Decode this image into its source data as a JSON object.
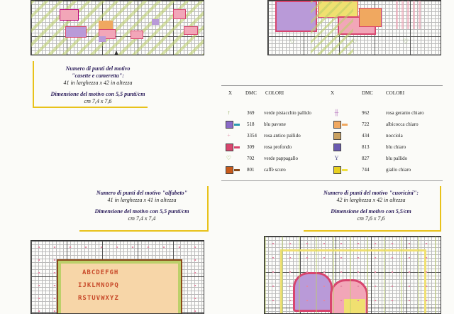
{
  "captions": {
    "casette": {
      "title_line1": "Numero di punti del motivo",
      "title_line2": "\"casette e cameretta\":",
      "stitches": "41 in larghezza x 42 in altezza",
      "size_title": "Dimensione del motivo con 5,5 punti/cm",
      "size_value": "cm 7,4 x 7,6"
    },
    "alfabeto": {
      "title_line1": "Numero di punti del motivo \"alfabeto\"",
      "stitches": "41 in larghezza x 41 in altezza",
      "size_title": "Dimensione del motivo con 5,5 punti/cm",
      "size_value": "cm 7,4 x 7,4"
    },
    "cuoricini": {
      "title_line1": "Numero di punti del motivo \"cuoricini\":",
      "stitches": "42 in larghezza x 42 in altezza",
      "size_title": "Dimensione del motivo con 5,5/cm",
      "size_value": "cm 7,6 x 7,6"
    }
  },
  "legend": {
    "headers": {
      "x": "X",
      "dmc": "DMC",
      "colori": "COLORI"
    },
    "left": [
      {
        "symbol": "↑",
        "sym_color": "#7a9a3a",
        "dash_color": "",
        "dmc": "369",
        "name": "verde pistacchio pallido"
      },
      {
        "symbol": "",
        "sym_color": "#8a6ac8",
        "dash_color": "#2a9ab0",
        "dmc": "518",
        "name": "blu pavone"
      },
      {
        "symbol": "+",
        "sym_color": "#e3a0b4",
        "dash_color": "",
        "dmc": "3354",
        "name": "rosa antico pallido"
      },
      {
        "symbol": "",
        "sym_color": "#d8456e",
        "dash_color": "#d8456e",
        "dmc": "309",
        "name": "rosa profondo"
      },
      {
        "symbol": "♡",
        "sym_color": "#7aa83a",
        "dash_color": "",
        "dmc": "702",
        "name": "verde pappagallo"
      },
      {
        "symbol": "",
        "sym_color": "#c85a1a",
        "dash_color": "#8a4a1a",
        "dmc": "801",
        "name": "caffè scuro"
      }
    ],
    "right": [
      {
        "symbol": "╫",
        "sym_color": "#b06ab8",
        "dash_color": "",
        "dmc": "962",
        "name": "rosa geranio chiaro"
      },
      {
        "symbol": "",
        "sym_color": "#f0a860",
        "dash_color": "#f0a860",
        "dmc": "722",
        "name": "albicocca chiaro"
      },
      {
        "symbol": "",
        "sym_color": "#c8a060",
        "dash_color": "",
        "dmc": "434",
        "name": "nocciola"
      },
      {
        "symbol": "",
        "sym_color": "#6a5ab0",
        "dash_color": "",
        "dmc": "813",
        "name": "blu chiaro"
      },
      {
        "symbol": "Y",
        "sym_color": "#4a4a8a",
        "dash_color": "",
        "dmc": "827",
        "name": "blu pallido"
      },
      {
        "symbol": "",
        "sym_color": "#e8d020",
        "dash_color": "#f0e040",
        "dmc": "744",
        "name": "giallo chiaro"
      }
    ]
  },
  "alphabet": {
    "row1": "ABCDEFGH",
    "row2": "IJKLMNOPQ",
    "row3": "RSTUVWXYZ"
  },
  "colors": {
    "pink": "#f2a6b8",
    "rose": "#d8456e",
    "lavender": "#b99ad8",
    "yellow": "#f0e070",
    "orange": "#f0a860",
    "green": "#bcd06a",
    "grid": "#555555"
  }
}
